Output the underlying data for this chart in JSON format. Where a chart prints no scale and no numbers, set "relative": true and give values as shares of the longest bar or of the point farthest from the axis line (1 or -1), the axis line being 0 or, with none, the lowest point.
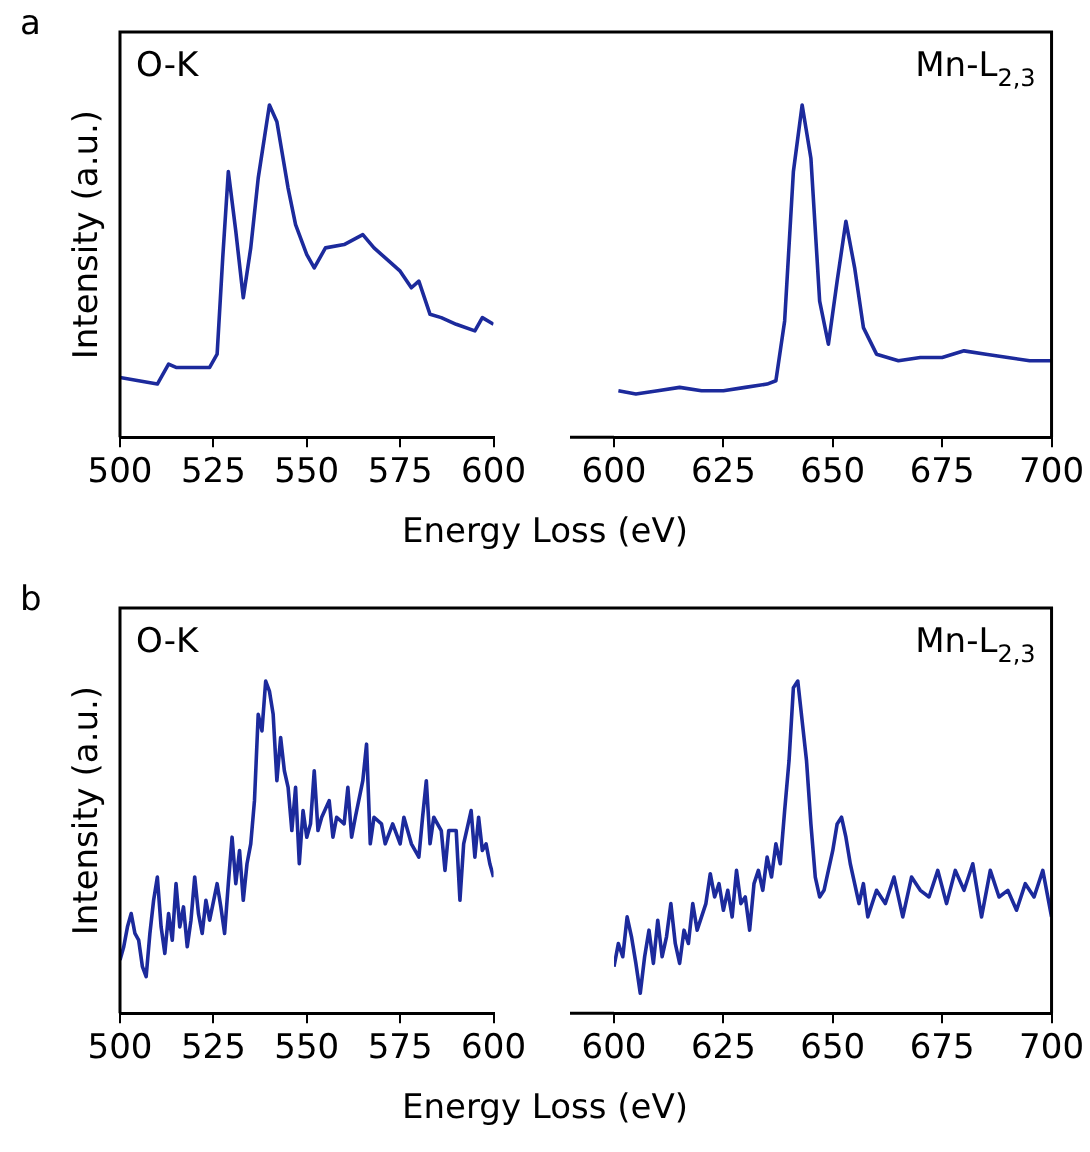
{
  "chart_data": [
    {
      "type": "line",
      "title": "a",
      "xlabel": "Energy Loss (eV)",
      "ylabel": "Intensity (a.u.)",
      "relative": true,
      "xlim": [
        500,
        600
      ],
      "xticks": [
        500,
        525,
        550,
        575,
        600
      ],
      "series": [
        {
          "name": "O-K",
          "color": "#1c2a9c",
          "x": [
            500,
            505,
            510,
            513,
            515,
            520,
            524,
            526,
            527.5,
            529,
            531,
            533,
            535,
            537,
            540,
            542,
            545,
            547,
            550,
            552,
            555,
            560,
            565,
            568,
            572,
            575,
            578,
            580,
            583,
            586,
            590,
            595,
            597,
            600
          ],
          "values": [
            0.18,
            0.17,
            0.16,
            0.22,
            0.21,
            0.21,
            0.21,
            0.25,
            0.54,
            0.8,
            0.62,
            0.42,
            0.57,
            0.78,
            1,
            0.95,
            0.75,
            0.64,
            0.55,
            0.51,
            0.57,
            0.58,
            0.61,
            0.57,
            0.53,
            0.5,
            0.45,
            0.47,
            0.37,
            0.36,
            0.34,
            0.32,
            0.36,
            0.34
          ]
        }
      ]
    },
    {
      "type": "line",
      "relative": true,
      "xlim": [
        600,
        700
      ],
      "xticks": [
        600,
        625,
        650,
        675,
        700
      ],
      "series": [
        {
          "name": "Mn-L$_{2,3}$",
          "color": "#1c2a9c",
          "x": [
            601,
            605,
            610,
            615,
            620,
            625,
            630,
            635,
            637,
            639,
            641,
            643,
            645,
            647,
            649,
            651,
            653,
            655,
            657,
            660,
            665,
            670,
            675,
            680,
            685,
            690,
            695,
            700
          ],
          "values": [
            0.14,
            0.13,
            0.14,
            0.15,
            0.14,
            0.14,
            0.15,
            0.16,
            0.17,
            0.35,
            0.8,
            1,
            0.84,
            0.41,
            0.28,
            0.47,
            0.65,
            0.51,
            0.33,
            0.25,
            0.23,
            0.24,
            0.24,
            0.26,
            0.25,
            0.24,
            0.23,
            0.23
          ]
        }
      ]
    },
    {
      "type": "line",
      "title": "b",
      "xlabel": "Energy Loss (eV)",
      "ylabel": "Intensity (a.u.)",
      "relative": true,
      "xlim": [
        500,
        600
      ],
      "xticks": [
        500,
        525,
        550,
        575,
        600
      ],
      "series": [
        {
          "name": "O-K",
          "color": "#1c2a9c",
          "x": [
            500,
            501,
            502,
            503,
            504,
            505,
            506,
            507,
            508,
            509,
            510,
            511,
            512,
            513,
            514,
            515,
            516,
            517,
            518,
            519,
            520,
            521,
            522,
            523,
            524,
            526,
            527,
            528,
            529,
            530,
            531,
            532,
            533,
            534,
            535,
            536,
            537,
            538,
            539,
            540,
            541,
            542,
            543,
            544,
            545,
            546,
            547,
            548,
            549,
            550,
            551,
            552,
            553,
            554,
            556,
            557,
            558,
            560,
            561,
            562,
            563,
            565,
            566,
            567,
            568,
            570,
            571,
            573,
            575,
            576,
            578,
            580,
            581,
            582,
            583,
            584,
            586,
            587,
            588,
            590,
            591,
            592,
            594,
            595,
            596,
            597,
            598,
            599,
            600
          ],
          "values": [
            0.16,
            0.2,
            0.26,
            0.3,
            0.24,
            0.22,
            0.14,
            0.11,
            0.24,
            0.34,
            0.41,
            0.26,
            0.18,
            0.3,
            0.22,
            0.39,
            0.26,
            0.32,
            0.2,
            0.28,
            0.41,
            0.3,
            0.24,
            0.34,
            0.28,
            0.39,
            0.32,
            0.24,
            0.39,
            0.53,
            0.39,
            0.49,
            0.34,
            0.45,
            0.51,
            0.64,
            0.9,
            0.85,
            1,
            0.97,
            0.9,
            0.7,
            0.83,
            0.73,
            0.68,
            0.55,
            0.68,
            0.45,
            0.61,
            0.53,
            0.57,
            0.73,
            0.55,
            0.59,
            0.64,
            0.53,
            0.59,
            0.57,
            0.68,
            0.53,
            0.59,
            0.7,
            0.81,
            0.51,
            0.59,
            0.57,
            0.51,
            0.57,
            0.51,
            0.59,
            0.51,
            0.47,
            0.59,
            0.7,
            0.51,
            0.59,
            0.55,
            0.43,
            0.55,
            0.55,
            0.34,
            0.51,
            0.61,
            0.47,
            0.59,
            0.49,
            0.51,
            0.45,
            0.41
          ]
        }
      ]
    },
    {
      "type": "line",
      "relative": true,
      "xlim": [
        600,
        700
      ],
      "xticks": [
        600,
        625,
        650,
        675,
        700
      ],
      "series": [
        {
          "name": "Mn-L$_{2,3}$",
          "color": "#1c2a9c",
          "x": [
            600,
            601,
            602,
            603,
            604,
            605,
            606,
            607,
            608,
            609,
            610,
            611,
            612,
            613,
            614,
            615,
            616,
            617,
            618,
            619,
            620,
            621,
            622,
            623,
            624,
            625,
            626,
            627,
            628,
            629,
            630,
            631,
            632,
            633,
            634,
            635,
            636,
            637,
            638,
            639,
            640,
            641,
            642,
            643,
            644,
            645,
            646,
            647,
            648,
            649,
            650,
            651,
            652,
            653,
            654,
            655,
            656,
            657,
            658,
            660,
            662,
            664,
            666,
            668,
            670,
            672,
            674,
            676,
            678,
            680,
            682,
            684,
            686,
            688,
            690,
            692,
            694,
            696,
            698,
            700
          ],
          "values": [
            0.14,
            0.21,
            0.17,
            0.29,
            0.23,
            0.15,
            0.06,
            0.17,
            0.25,
            0.15,
            0.28,
            0.17,
            0.23,
            0.33,
            0.21,
            0.15,
            0.25,
            0.21,
            0.33,
            0.25,
            0.29,
            0.33,
            0.42,
            0.35,
            0.39,
            0.31,
            0.37,
            0.29,
            0.43,
            0.33,
            0.35,
            0.25,
            0.39,
            0.43,
            0.37,
            0.47,
            0.41,
            0.51,
            0.45,
            0.61,
            0.76,
            0.98,
            1,
            0.88,
            0.76,
            0.57,
            0.41,
            0.35,
            0.37,
            0.43,
            0.49,
            0.57,
            0.59,
            0.53,
            0.45,
            0.39,
            0.33,
            0.39,
            0.29,
            0.37,
            0.33,
            0.41,
            0.29,
            0.41,
            0.37,
            0.35,
            0.43,
            0.33,
            0.43,
            0.37,
            0.45,
            0.29,
            0.43,
            0.35,
            0.37,
            0.31,
            0.39,
            0.35,
            0.43,
            0.29
          ]
        }
      ]
    }
  ]
}
